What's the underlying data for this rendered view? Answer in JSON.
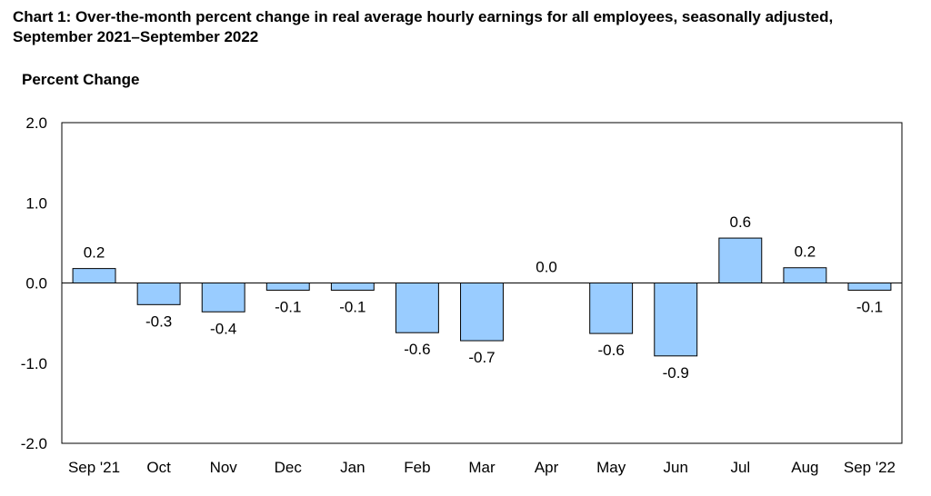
{
  "chart_data": {
    "type": "bar",
    "title": "Chart 1: Over-the-month percent change in real average hourly earnings for all employees, seasonally adjusted, September 2021–September 2022",
    "ylabel": "Percent Change",
    "xlabel": "",
    "categories": [
      "Sep '21",
      "Oct",
      "Nov",
      "Dec",
      "Jan",
      "Feb",
      "Mar",
      "Apr",
      "May",
      "Jun",
      "Jul",
      "Aug",
      "Sep '22"
    ],
    "values": [
      0.18,
      -0.27,
      -0.36,
      -0.09,
      -0.09,
      -0.62,
      -0.72,
      0.0,
      -0.63,
      -0.91,
      0.56,
      0.19,
      -0.09
    ],
    "data_labels": [
      "0.2",
      "-0.3",
      "-0.4",
      "-0.1",
      "-0.1",
      "-0.6",
      "-0.7",
      "0.0",
      "-0.6",
      "-0.9",
      "0.6",
      "0.2",
      "-0.1"
    ],
    "ylim": [
      -2.0,
      2.0
    ],
    "yticks": [
      2.0,
      1.0,
      0.0,
      -1.0,
      -2.0
    ],
    "ytick_labels": [
      "2.0",
      "1.0",
      "0.0",
      "-1.0",
      "-2.0"
    ],
    "grid": false,
    "legend": "none",
    "bar_color": "#99ccff",
    "bar_edge_color": "#000000"
  }
}
